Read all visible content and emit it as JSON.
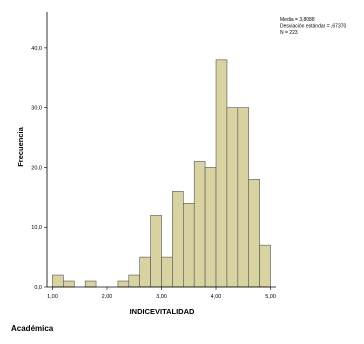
{
  "chart_data": {
    "type": "bar",
    "subtype": "histogram",
    "xlabel": "INDICEVITALIDAD",
    "ylabel": "Frecuencia",
    "xlim": [
      0.9,
      5.1
    ],
    "ylim": [
      0,
      46
    ],
    "xticks": [
      1.0,
      2.0,
      3.0,
      4.0,
      5.0
    ],
    "xtick_labels": [
      "1,00",
      "2,00",
      "3,00",
      "4,00",
      "5,00"
    ],
    "yticks": [
      0,
      10,
      20,
      30,
      40
    ],
    "ytick_labels": [
      "0,0",
      "10,0",
      "20,0",
      "30,0",
      "40,0"
    ],
    "grid": false,
    "bar_color": "#d8d3a0",
    "bar_edge_color": "#555555",
    "bin_width": 0.2,
    "bins": [
      {
        "x_start": 1.0,
        "x_end": 1.2,
        "value": 2
      },
      {
        "x_start": 1.2,
        "x_end": 1.4,
        "value": 1
      },
      {
        "x_start": 1.4,
        "x_end": 1.6,
        "value": 0
      },
      {
        "x_start": 1.6,
        "x_end": 1.8,
        "value": 1
      },
      {
        "x_start": 1.8,
        "x_end": 2.0,
        "value": 0
      },
      {
        "x_start": 2.0,
        "x_end": 2.2,
        "value": 0
      },
      {
        "x_start": 2.2,
        "x_end": 2.4,
        "value": 1
      },
      {
        "x_start": 2.4,
        "x_end": 2.6,
        "value": 2
      },
      {
        "x_start": 2.6,
        "x_end": 2.8,
        "value": 5
      },
      {
        "x_start": 2.8,
        "x_end": 3.0,
        "value": 12
      },
      {
        "x_start": 3.0,
        "x_end": 3.2,
        "value": 5
      },
      {
        "x_start": 3.2,
        "x_end": 3.4,
        "value": 16
      },
      {
        "x_start": 3.4,
        "x_end": 3.6,
        "value": 14
      },
      {
        "x_start": 3.6,
        "x_end": 3.8,
        "value": 21
      },
      {
        "x_start": 3.8,
        "x_end": 4.0,
        "value": 20
      },
      {
        "x_start": 4.0,
        "x_end": 4.2,
        "value": 38
      },
      {
        "x_start": 4.2,
        "x_end": 4.4,
        "value": 30
      },
      {
        "x_start": 4.4,
        "x_end": 4.6,
        "value": 30
      },
      {
        "x_start": 4.6,
        "x_end": 4.8,
        "value": 18
      },
      {
        "x_start": 4.8,
        "x_end": 5.0,
        "value": 7
      }
    ],
    "legend_position": "top-right",
    "stats": [
      "Media = 3,8088",
      "Desviación estándar = ,67370",
      "N = 223"
    ]
  },
  "caption": "Académica"
}
